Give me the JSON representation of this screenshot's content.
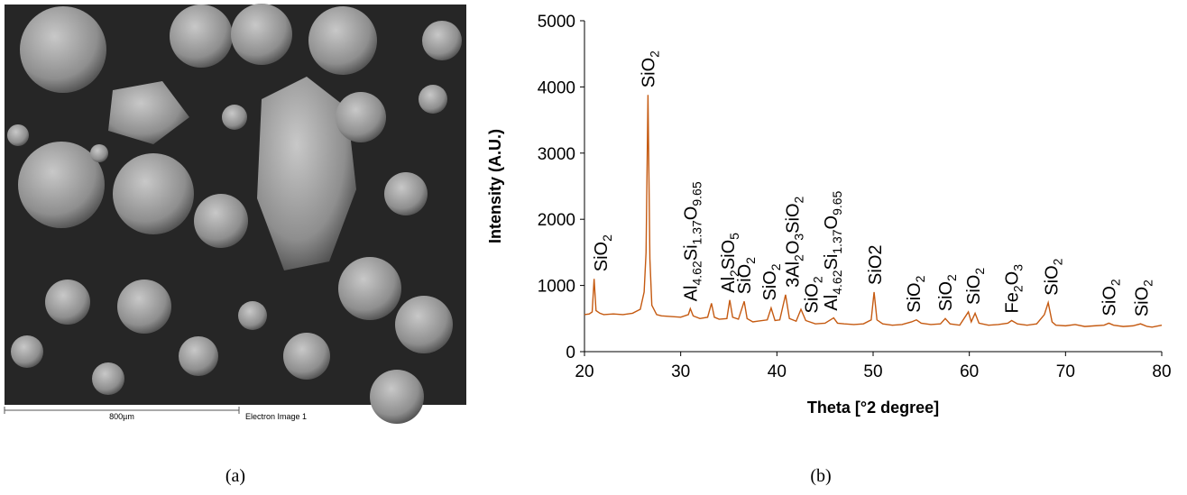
{
  "figure": {
    "panel_a": {
      "scale_label": "800µm",
      "image_label": "Electron Image 1",
      "caption": "(a)"
    },
    "panel_b": {
      "caption": "(b)"
    }
  },
  "chart_data": {
    "type": "line",
    "xlabel": "Theta [°2 degree]",
    "ylabel": "Intensity (A.U.)",
    "color": "#c55a11",
    "xlim": [
      20,
      80
    ],
    "xticks": [
      20,
      30,
      40,
      50,
      60,
      70,
      80
    ],
    "ylim": [
      0,
      5000
    ],
    "yticks": [
      0,
      1000,
      2000,
      3000,
      4000,
      5000
    ],
    "grid": false,
    "x": [
      20,
      20.5,
      20.8,
      21.0,
      21.2,
      21.6,
      22,
      23,
      24,
      25,
      25.8,
      26.2,
      26.4,
      26.6,
      26.8,
      27.0,
      27.5,
      28,
      29,
      30,
      30.8,
      31.0,
      31.3,
      32,
      32.8,
      33.2,
      33.5,
      34,
      34.8,
      35.1,
      35.4,
      36,
      36.6,
      36.9,
      37.5,
      38,
      39,
      39.4,
      39.8,
      40.3,
      40.9,
      41.3,
      42,
      42.5,
      43,
      44,
      45,
      45.9,
      46.3,
      47,
      48,
      49,
      49.8,
      50.1,
      50.4,
      51,
      52,
      53,
      54,
      54.5,
      55,
      56,
      57,
      57.5,
      58,
      59,
      59.9,
      60.2,
      60.6,
      61,
      62,
      63,
      64,
      64.4,
      65,
      66,
      67,
      67.8,
      68.2,
      68.6,
      69,
      70,
      71,
      72,
      73,
      74,
      74.5,
      75,
      76,
      77,
      77.8,
      78.5,
      79,
      80
    ],
    "values": [
      560,
      570,
      600,
      1100,
      620,
      580,
      560,
      570,
      560,
      580,
      640,
      900,
      1500,
      3880,
      1400,
      700,
      560,
      540,
      530,
      520,
      560,
      650,
      540,
      500,
      520,
      730,
      520,
      490,
      500,
      780,
      520,
      490,
      760,
      500,
      450,
      460,
      480,
      660,
      470,
      480,
      860,
      500,
      460,
      640,
      470,
      420,
      430,
      510,
      430,
      420,
      410,
      420,
      480,
      900,
      480,
      420,
      400,
      410,
      450,
      480,
      430,
      410,
      420,
      500,
      420,
      400,
      600,
      450,
      580,
      430,
      400,
      410,
      430,
      470,
      420,
      400,
      420,
      560,
      740,
      450,
      400,
      390,
      410,
      380,
      390,
      400,
      430,
      400,
      380,
      390,
      420,
      380,
      370,
      400
    ],
    "annotations": [
      {
        "x": 21.7,
        "parts": [
          "SiO",
          "2"
        ]
      },
      {
        "x": 26.6,
        "parts": [
          "SiO",
          "2"
        ]
      },
      {
        "x": 31.0,
        "parts": [
          "Al",
          "4.62",
          "Si",
          "1.37",
          "O",
          "9.65"
        ]
      },
      {
        "x": 34.9,
        "parts": [
          "Al",
          "2",
          "SiO",
          "5"
        ]
      },
      {
        "x": 36.6,
        "parts": [
          "SiO",
          "2"
        ]
      },
      {
        "x": 39.2,
        "parts": [
          "SiO",
          "2"
        ]
      },
      {
        "x": 41.6,
        "parts": [
          "3Al",
          "2",
          "O",
          "3",
          "SiO",
          "2"
        ]
      },
      {
        "x": 43.6,
        "parts": [
          "SiO",
          "2"
        ]
      },
      {
        "x": 45.6,
        "parts": [
          "Al",
          "4.62",
          "Si",
          "1.37",
          "O",
          "9.65"
        ]
      },
      {
        "x": 50.2,
        "parts": [
          "SiO2"
        ]
      },
      {
        "x": 54.2,
        "parts": [
          "SiO",
          "2"
        ]
      },
      {
        "x": 57.5,
        "parts": [
          "SiO",
          "2"
        ]
      },
      {
        "x": 60.4,
        "parts": [
          "SiO",
          "2"
        ]
      },
      {
        "x": 64.4,
        "parts": [
          "Fe",
          "2",
          "O",
          "3"
        ]
      },
      {
        "x": 68.5,
        "parts": [
          "SiO",
          "2"
        ]
      },
      {
        "x": 74.5,
        "parts": [
          "SiO",
          "2"
        ]
      },
      {
        "x": 77.9,
        "parts": [
          "SiO",
          "2"
        ]
      }
    ]
  }
}
